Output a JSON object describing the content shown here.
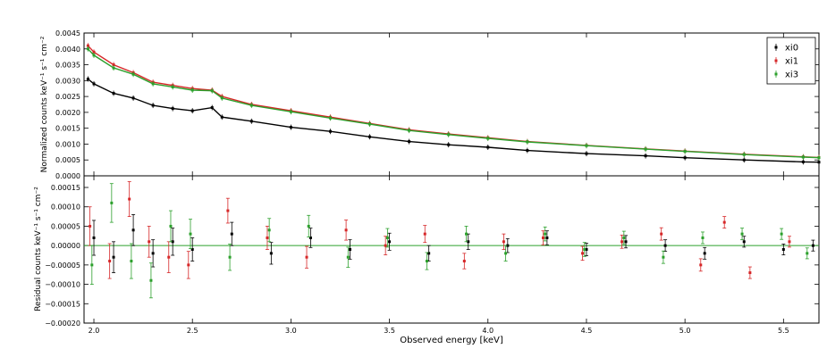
{
  "chart_data": [
    {
      "panel": "top",
      "type": "scatter",
      "ylabel": "Normalized counts keV⁻¹ s⁻¹ cm⁻²",
      "xlim": [
        1.95,
        5.68
      ],
      "ylim": [
        0.0,
        0.0045
      ],
      "y_ticks": [
        0.0,
        0.0005,
        0.001,
        0.0015,
        0.002,
        0.0025,
        0.003,
        0.0035,
        0.004,
        0.0045
      ],
      "y_tick_labels": [
        "0.0000",
        "0.0005",
        "0.0010",
        "0.0015",
        "0.0020",
        "0.0025",
        "0.0030",
        "0.0035",
        "0.0040",
        "0.0045"
      ],
      "legend": {
        "position": "top-right",
        "entries": [
          "xi0",
          "xi1",
          "xi3"
        ]
      },
      "series": [
        {
          "name": "xi0",
          "color": "#000000",
          "x": [
            1.97,
            2.0,
            2.1,
            2.2,
            2.3,
            2.4,
            2.5,
            2.6,
            2.65,
            2.8,
            3.0,
            3.2,
            3.4,
            3.6,
            3.8,
            4.0,
            4.2,
            4.5,
            4.8,
            5.0,
            5.3,
            5.6,
            5.68
          ],
          "y": [
            0.00305,
            0.0029,
            0.0026,
            0.00245,
            0.00222,
            0.00212,
            0.00205,
            0.00215,
            0.00185,
            0.00172,
            0.00153,
            0.0014,
            0.00123,
            0.00108,
            0.00098,
            0.0009,
            0.0008,
            0.0007,
            0.00063,
            0.00057,
            0.0005,
            0.00044,
            0.00043
          ]
        },
        {
          "name": "xi1",
          "color": "#d62728",
          "x": [
            1.97,
            2.0,
            2.1,
            2.2,
            2.3,
            2.4,
            2.5,
            2.6,
            2.65,
            2.8,
            3.0,
            3.2,
            3.4,
            3.6,
            3.8,
            4.0,
            4.2,
            4.5,
            4.8,
            5.0,
            5.3,
            5.6,
            5.68
          ],
          "y": [
            0.0041,
            0.0039,
            0.0035,
            0.00325,
            0.00295,
            0.00285,
            0.00275,
            0.0027,
            0.0025,
            0.00225,
            0.00205,
            0.00185,
            0.00165,
            0.00145,
            0.00132,
            0.0012,
            0.00108,
            0.00096,
            0.00085,
            0.00078,
            0.00068,
            0.0006,
            0.00058
          ]
        },
        {
          "name": "xi3",
          "color": "#2ca02c",
          "x": [
            1.97,
            2.0,
            2.1,
            2.2,
            2.3,
            2.4,
            2.5,
            2.6,
            2.65,
            2.8,
            3.0,
            3.2,
            3.4,
            3.6,
            3.8,
            4.0,
            4.2,
            4.5,
            4.8,
            5.0,
            5.3,
            5.6,
            5.68
          ],
          "y": [
            0.004,
            0.0038,
            0.0034,
            0.0032,
            0.0029,
            0.0028,
            0.0027,
            0.00268,
            0.00245,
            0.00222,
            0.00202,
            0.00182,
            0.00163,
            0.00143,
            0.0013,
            0.00118,
            0.00107,
            0.00095,
            0.00084,
            0.00077,
            0.00067,
            0.00059,
            0.00057
          ]
        }
      ]
    },
    {
      "panel": "bottom",
      "type": "scatter",
      "xlabel": "Observed energy [keV]",
      "ylabel": "Residual counts keV⁻¹ s⁻¹ cm⁻²",
      "xlim": [
        1.95,
        5.68
      ],
      "ylim": [
        -0.0002,
        0.00018
      ],
      "x_ticks": [
        2.0,
        2.5,
        3.0,
        3.5,
        4.0,
        4.5,
        5.0,
        5.5
      ],
      "x_tick_labels": [
        "2.0",
        "2.5",
        "3.0",
        "3.5",
        "4.0",
        "4.5",
        "5.0",
        "5.5"
      ],
      "y_ticks": [
        -0.0002,
        -0.00015,
        -0.0001,
        -5e-05,
        0.0,
        5e-05,
        0.0001,
        0.00015
      ],
      "y_tick_labels": [
        "−0.00020",
        "−0.00015",
        "−0.00010",
        "−0.00005",
        "0.00000",
        "0.00005",
        "0.00010",
        "0.00015"
      ],
      "reference_line": 0.0,
      "series": [
        {
          "name": "xi0",
          "color": "#000000",
          "x": [
            2.0,
            2.1,
            2.2,
            2.3,
            2.4,
            2.5,
            2.7,
            2.9,
            3.1,
            3.3,
            3.5,
            3.7,
            3.9,
            4.1,
            4.3,
            4.5,
            4.7,
            4.9,
            5.1,
            5.3,
            5.5,
            5.65
          ],
          "y": [
            2e-05,
            -3e-05,
            4e-05,
            -2e-05,
            1e-05,
            -1e-05,
            3e-05,
            -2e-05,
            2e-05,
            -1e-05,
            1e-05,
            -2e-05,
            1e-05,
            0.0,
            2e-05,
            -1e-05,
            1e-05,
            0.0,
            -2e-05,
            1e-05,
            -1e-05,
            0.0
          ],
          "err": [
            4.5e-05,
            4e-05,
            4e-05,
            3.5e-05,
            3.5e-05,
            3e-05,
            3e-05,
            2.8e-05,
            2.5e-05,
            2.5e-05,
            2.2e-05,
            2e-05,
            2e-05,
            1.8e-05,
            1.8e-05,
            1.6e-05,
            1.6e-05,
            1.5e-05,
            1.5e-05,
            1.4e-05,
            1.4e-05,
            1.4e-05
          ]
        },
        {
          "name": "xi1",
          "color": "#d62728",
          "x": [
            1.98,
            2.08,
            2.18,
            2.28,
            2.38,
            2.48,
            2.68,
            2.88,
            3.08,
            3.28,
            3.48,
            3.68,
            3.88,
            4.08,
            4.28,
            4.48,
            4.68,
            4.88,
            5.08,
            5.2,
            5.33,
            5.53
          ],
          "y": [
            5e-05,
            -4e-05,
            0.00012,
            1e-05,
            -3e-05,
            -5e-05,
            9e-05,
            2e-05,
            -3e-05,
            4e-05,
            0.0,
            3e-05,
            -4e-05,
            1e-05,
            2e-05,
            -2e-05,
            1e-05,
            3e-05,
            -5e-05,
            6e-05,
            -7e-05,
            1e-05
          ],
          "err": [
            5e-05,
            4.5e-05,
            4.5e-05,
            4e-05,
            4e-05,
            3.5e-05,
            3.2e-05,
            3e-05,
            2.8e-05,
            2.6e-05,
            2.4e-05,
            2.2e-05,
            2e-05,
            2e-05,
            1.8e-05,
            1.8e-05,
            1.7e-05,
            1.6e-05,
            1.6e-05,
            1.5e-05,
            1.5e-05,
            1.4e-05
          ]
        },
        {
          "name": "xi3",
          "color": "#2ca02c",
          "x": [
            1.99,
            2.09,
            2.19,
            2.29,
            2.39,
            2.49,
            2.69,
            2.89,
            3.09,
            3.29,
            3.49,
            3.69,
            3.89,
            4.09,
            4.29,
            4.49,
            4.69,
            4.89,
            5.09,
            5.29,
            5.49,
            5.62
          ],
          "y": [
            -5e-05,
            0.00011,
            -4e-05,
            -9e-05,
            5e-05,
            3e-05,
            -3e-05,
            4e-05,
            5e-05,
            -3e-05,
            2e-05,
            -4e-05,
            3e-05,
            -2e-05,
            3e-05,
            -1e-05,
            2e-05,
            -3e-05,
            2e-05,
            3e-05,
            3e-05,
            -2e-05
          ],
          "err": [
            5e-05,
            5e-05,
            4.5e-05,
            4.5e-05,
            4e-05,
            3.8e-05,
            3.4e-05,
            3e-05,
            2.8e-05,
            2.6e-05,
            2.4e-05,
            2.2e-05,
            2e-05,
            2e-05,
            1.8e-05,
            1.8e-05,
            1.7e-05,
            1.6e-05,
            1.5e-05,
            1.5e-05,
            1.4e-05,
            1.4e-05
          ]
        }
      ]
    }
  ]
}
